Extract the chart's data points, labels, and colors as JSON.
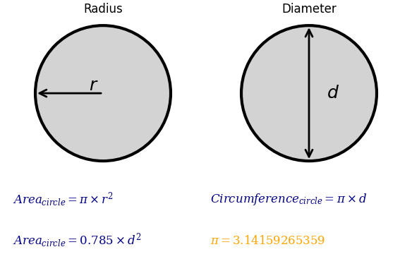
{
  "bg_color": "#ffffff",
  "circle_fill": "#d3d3d3",
  "circle_edge": "#000000",
  "circle_lw": 3.0,
  "left_title": "Radius",
  "right_title": "Diameter",
  "left_label": "r",
  "right_label": "d",
  "formula_color": "#00008B",
  "formula_fontsize": 12,
  "title_fontsize": 12,
  "label_fontsize": 18,
  "formula1_left_main": "Area",
  "formula1_left_sub": "circle",
  "formula2_left_main": "Area",
  "formula2_left_sub": "circle",
  "pi_color": "#FFA500"
}
